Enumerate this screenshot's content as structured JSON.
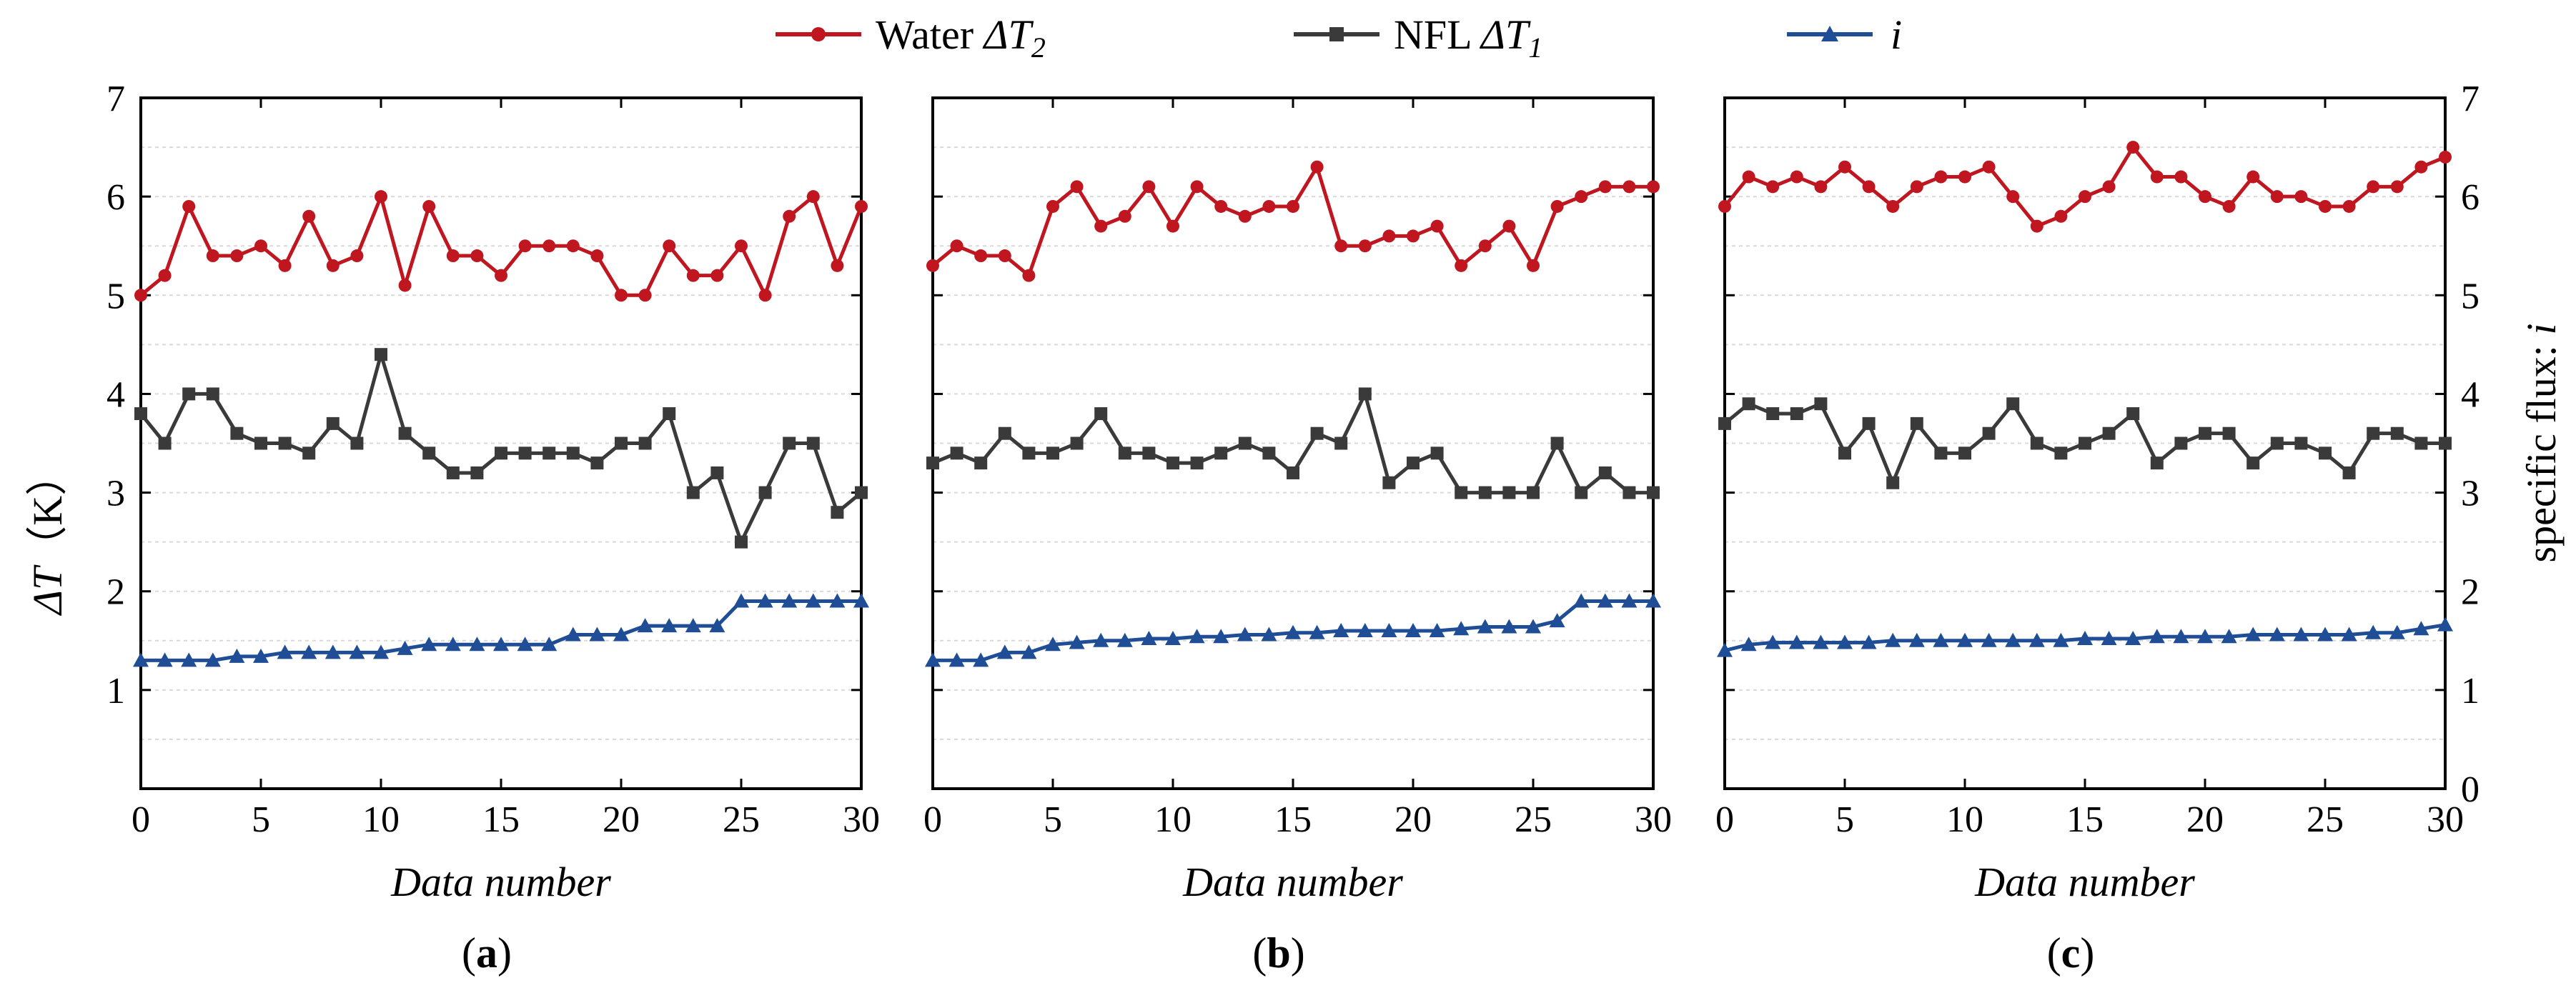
{
  "colors": {
    "water": "#c0161f",
    "nfl": "#3a3a3a",
    "flux": "#1f4e96"
  },
  "legend": {
    "water_prefix": "Water ",
    "water_sym": "ΔT",
    "water_sub": "2",
    "nfl_prefix": "NFL ",
    "nfl_sym": "ΔT",
    "nfl_sub": "1",
    "flux_sym": "i"
  },
  "axis": {
    "left_sym": "ΔT",
    "left_unit": "（K）",
    "right_prefix": "specific flux: ",
    "right_sym": "i",
    "xlabel": "Data number",
    "x_ticks": [
      "0",
      "5",
      "10",
      "15",
      "20",
      "25",
      "30"
    ],
    "left_y_ticks": [
      "1",
      "2",
      "3",
      "4",
      "5",
      "6",
      "7"
    ],
    "right_y_ticks": [
      "0",
      "1",
      "2",
      "3",
      "4",
      "5",
      "6",
      "7"
    ]
  },
  "chart_data": [
    {
      "type": "line",
      "panel": "a",
      "panel_label": [
        "(",
        "a",
        ")"
      ],
      "xlabel": "Data number",
      "ylabel": "ΔT（K）",
      "xlim": [
        0,
        30
      ],
      "ylim": [
        0,
        7
      ],
      "x": [
        0,
        1,
        2,
        3,
        4,
        5,
        6,
        7,
        8,
        9,
        10,
        11,
        12,
        13,
        14,
        15,
        16,
        17,
        18,
        19,
        20,
        21,
        22,
        23,
        24,
        25,
        26,
        27,
        28,
        29,
        30
      ],
      "series": [
        {
          "name": "Water ΔT2",
          "values": [
            5.0,
            5.2,
            5.9,
            5.4,
            5.4,
            5.5,
            5.3,
            5.8,
            5.3,
            5.4,
            6.0,
            5.1,
            5.9,
            5.4,
            5.4,
            5.2,
            5.5,
            5.5,
            5.5,
            5.4,
            5.0,
            5.0,
            5.5,
            5.2,
            5.2,
            5.5,
            5.0,
            5.8,
            6.0,
            5.3,
            5.9
          ]
        },
        {
          "name": "NFL ΔT1",
          "values": [
            3.8,
            3.5,
            4.0,
            4.0,
            3.6,
            3.5,
            3.5,
            3.4,
            3.7,
            3.5,
            4.4,
            3.6,
            3.4,
            3.2,
            3.2,
            3.4,
            3.4,
            3.4,
            3.4,
            3.3,
            3.5,
            3.5,
            3.8,
            3.0,
            3.2,
            2.5,
            3.0,
            3.5,
            3.5,
            2.8,
            3.0
          ]
        },
        {
          "name": "i",
          "values": [
            1.3,
            1.3,
            1.3,
            1.3,
            1.34,
            1.34,
            1.38,
            1.38,
            1.38,
            1.38,
            1.38,
            1.42,
            1.46,
            1.46,
            1.46,
            1.46,
            1.46,
            1.46,
            1.56,
            1.56,
            1.56,
            1.65,
            1.65,
            1.65,
            1.65,
            1.9,
            1.9,
            1.9,
            1.9,
            1.9,
            1.9
          ]
        }
      ]
    },
    {
      "type": "line",
      "panel": "b",
      "panel_label": [
        "(",
        "b",
        ")"
      ],
      "xlabel": "Data number",
      "xlim": [
        0,
        30
      ],
      "ylim": [
        0,
        7
      ],
      "x": [
        0,
        1,
        2,
        3,
        4,
        5,
        6,
        7,
        8,
        9,
        10,
        11,
        12,
        13,
        14,
        15,
        16,
        17,
        18,
        19,
        20,
        21,
        22,
        23,
        24,
        25,
        26,
        27,
        28,
        29,
        30
      ],
      "series": [
        {
          "name": "Water ΔT2",
          "values": [
            5.3,
            5.5,
            5.4,
            5.4,
            5.2,
            5.9,
            6.1,
            5.7,
            5.8,
            6.1,
            5.7,
            6.1,
            5.9,
            5.8,
            5.9,
            5.9,
            6.3,
            5.5,
            5.5,
            5.6,
            5.6,
            5.7,
            5.3,
            5.5,
            5.7,
            5.3,
            5.9,
            6.0,
            6.1,
            6.1,
            6.1
          ]
        },
        {
          "name": "NFL ΔT1",
          "values": [
            3.3,
            3.4,
            3.3,
            3.6,
            3.4,
            3.4,
            3.5,
            3.8,
            3.4,
            3.4,
            3.3,
            3.3,
            3.4,
            3.5,
            3.4,
            3.2,
            3.6,
            3.5,
            4.0,
            3.1,
            3.3,
            3.4,
            3.0,
            3.0,
            3.0,
            3.0,
            3.5,
            3.0,
            3.2,
            3.0,
            3.0
          ]
        },
        {
          "name": "i",
          "values": [
            1.3,
            1.3,
            1.3,
            1.38,
            1.38,
            1.46,
            1.48,
            1.5,
            1.5,
            1.52,
            1.52,
            1.54,
            1.54,
            1.56,
            1.56,
            1.58,
            1.58,
            1.6,
            1.6,
            1.6,
            1.6,
            1.6,
            1.62,
            1.64,
            1.64,
            1.64,
            1.7,
            1.9,
            1.9,
            1.9,
            1.9
          ]
        }
      ]
    },
    {
      "type": "line",
      "panel": "c",
      "panel_label": [
        "(",
        "c",
        ")"
      ],
      "xlabel": "Data number",
      "ylabel_right": "specific flux: i",
      "xlim": [
        0,
        30
      ],
      "ylim": [
        0,
        7
      ],
      "x": [
        0,
        1,
        2,
        3,
        4,
        5,
        6,
        7,
        8,
        9,
        10,
        11,
        12,
        13,
        14,
        15,
        16,
        17,
        18,
        19,
        20,
        21,
        22,
        23,
        24,
        25,
        26,
        27,
        28,
        29,
        30
      ],
      "series": [
        {
          "name": "Water ΔT2",
          "values": [
            5.9,
            6.2,
            6.1,
            6.2,
            6.1,
            6.3,
            6.1,
            5.9,
            6.1,
            6.2,
            6.2,
            6.3,
            6.0,
            5.7,
            5.8,
            6.0,
            6.1,
            6.5,
            6.2,
            6.2,
            6.0,
            5.9,
            6.2,
            6.0,
            6.0,
            5.9,
            5.9,
            6.1,
            6.1,
            6.3,
            6.4
          ]
        },
        {
          "name": "NFL ΔT1",
          "values": [
            3.7,
            3.9,
            3.8,
            3.8,
            3.9,
            3.4,
            3.7,
            3.1,
            3.7,
            3.4,
            3.4,
            3.6,
            3.9,
            3.5,
            3.4,
            3.5,
            3.6,
            3.8,
            3.3,
            3.5,
            3.6,
            3.6,
            3.3,
            3.5,
            3.5,
            3.4,
            3.2,
            3.6,
            3.6,
            3.5,
            3.5
          ]
        },
        {
          "name": "i",
          "values": [
            1.4,
            1.46,
            1.48,
            1.48,
            1.48,
            1.48,
            1.48,
            1.5,
            1.5,
            1.5,
            1.5,
            1.5,
            1.5,
            1.5,
            1.5,
            1.52,
            1.52,
            1.52,
            1.54,
            1.54,
            1.54,
            1.54,
            1.56,
            1.56,
            1.56,
            1.56,
            1.56,
            1.58,
            1.58,
            1.62,
            1.66
          ]
        }
      ]
    }
  ]
}
